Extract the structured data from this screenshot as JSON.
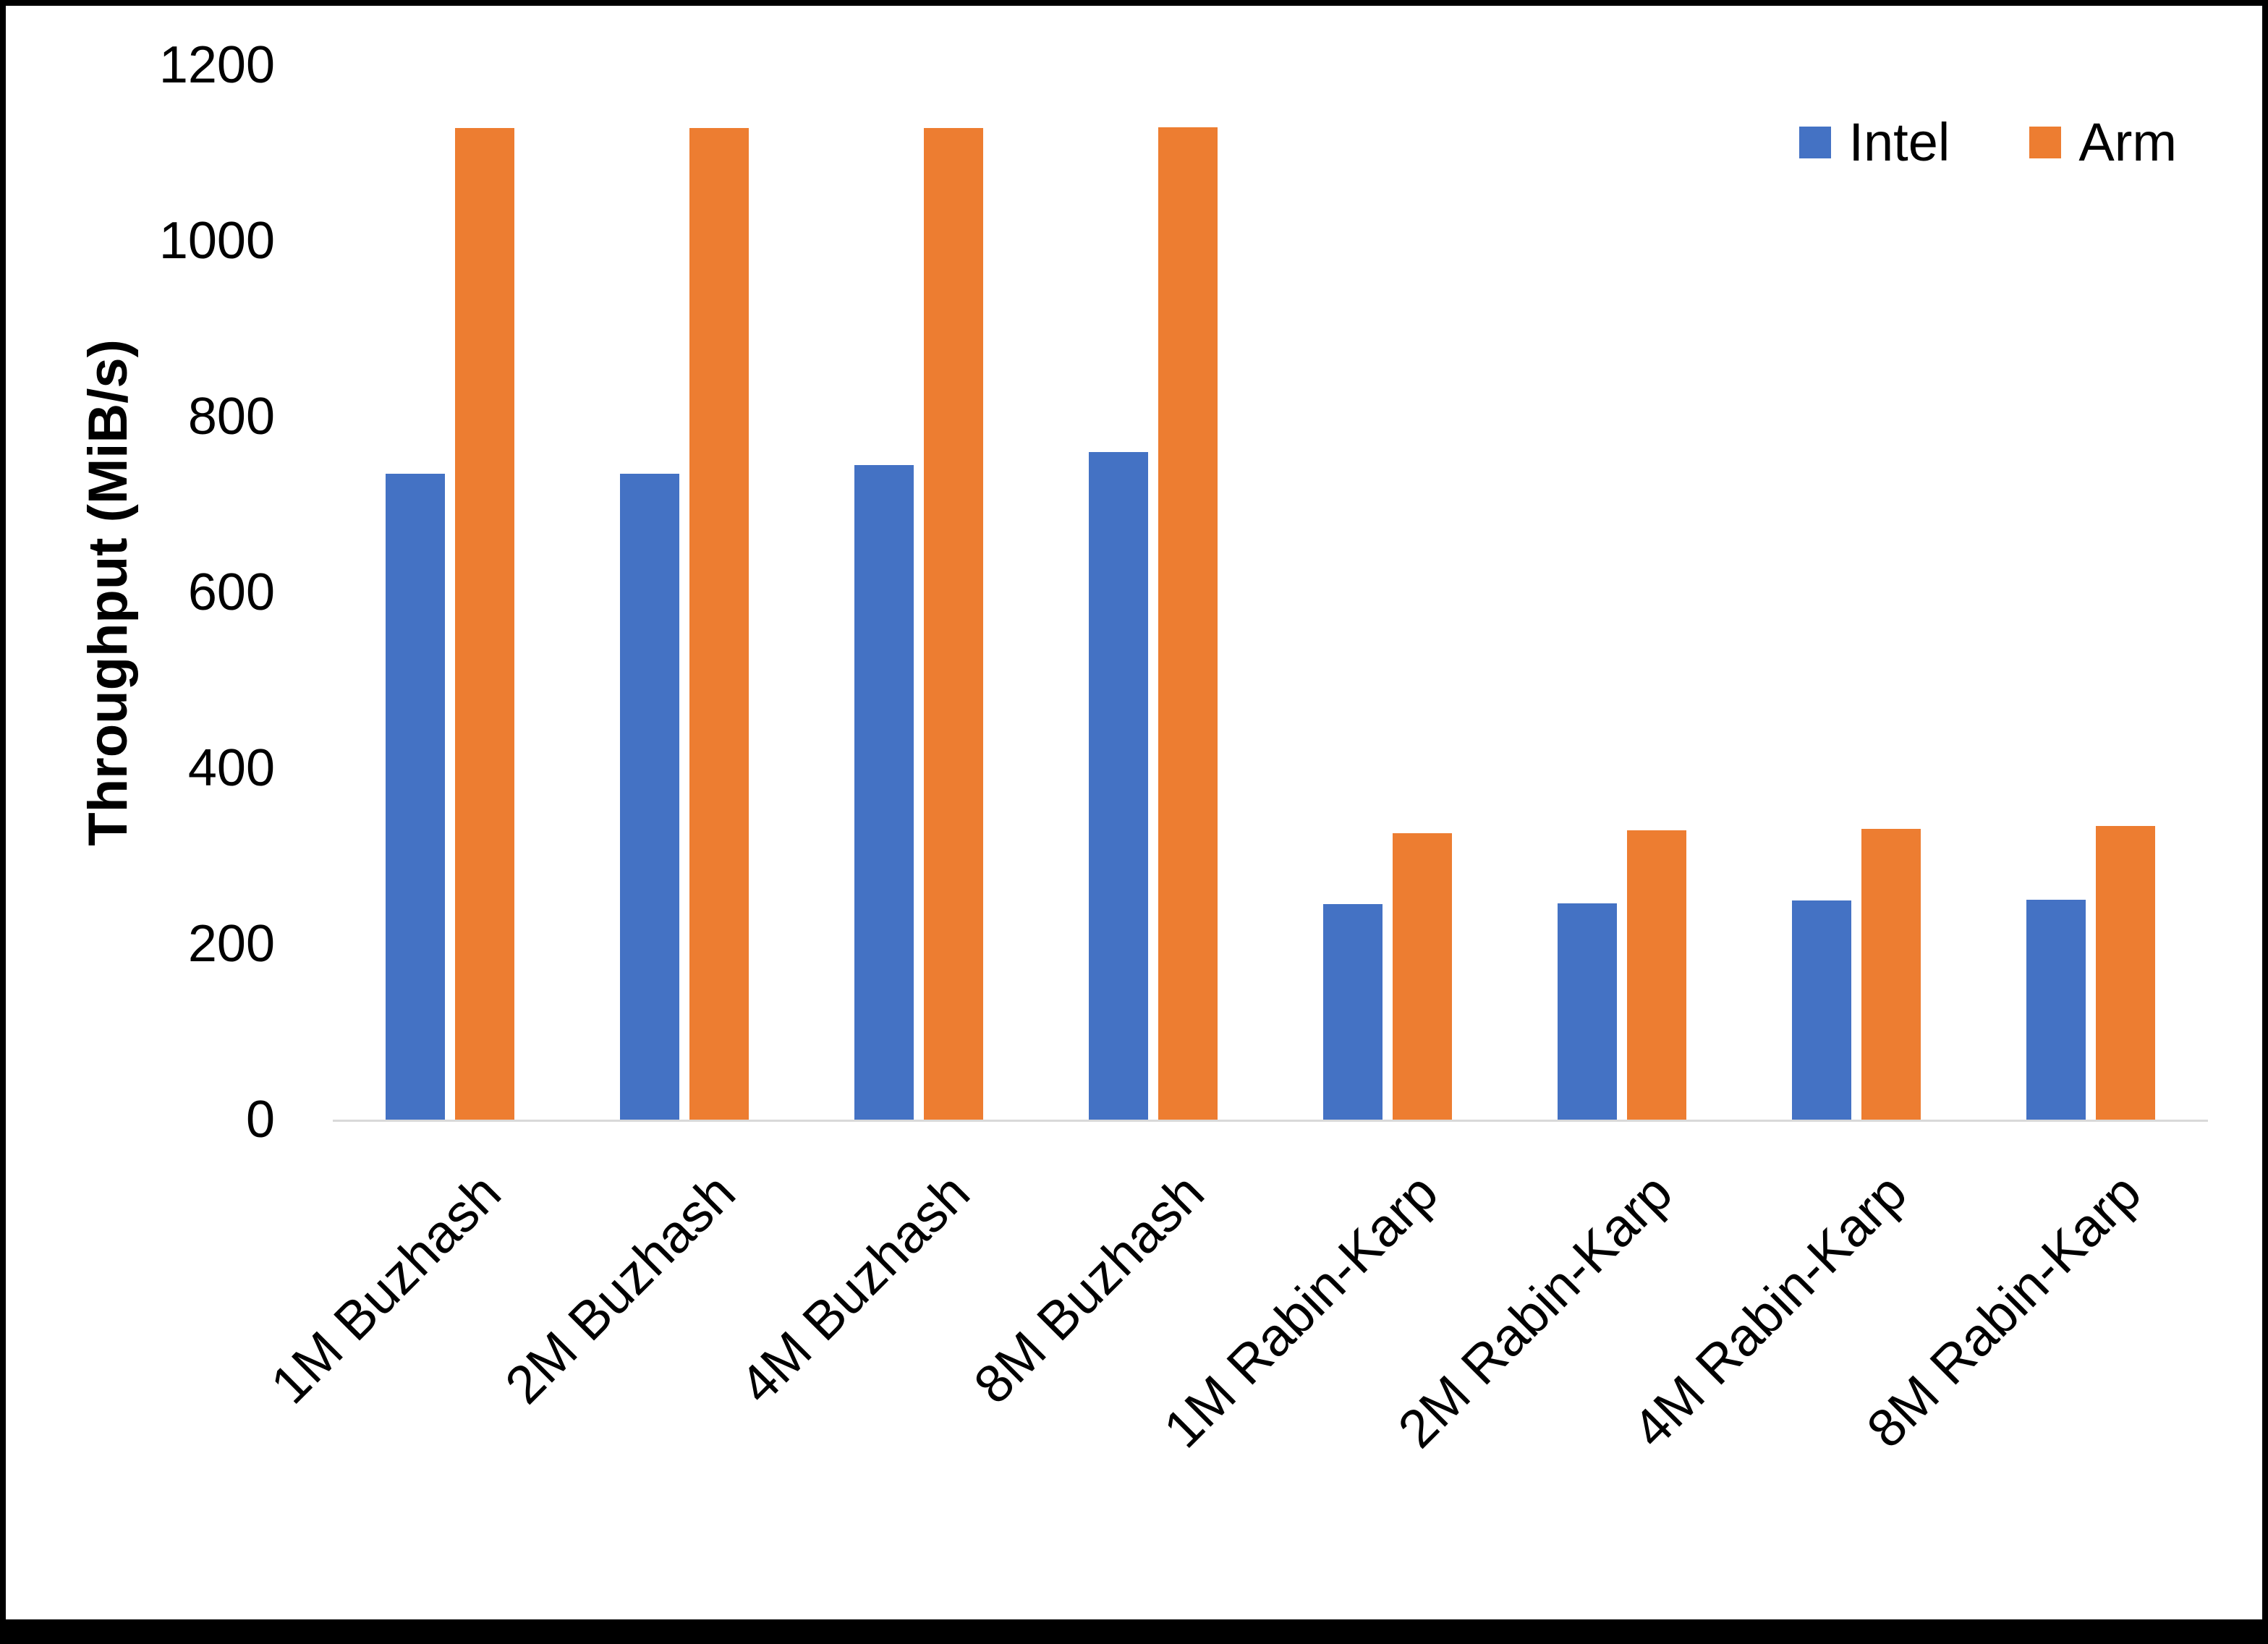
{
  "chart_data": {
    "type": "bar",
    "title": "",
    "xlabel": "",
    "ylabel": "Throughput (MiB/s)",
    "ylim": [
      0,
      1200
    ],
    "yticks": [
      0,
      200,
      400,
      600,
      800,
      1000,
      1200
    ],
    "grid": false,
    "legend_position": "top-right",
    "categories": [
      "1M Buzhash",
      "2M Buzhash",
      "4M Buzhash",
      "8M Buzhash",
      "1M Rabin-Karp",
      "2M Rabin-Karp",
      "4M Rabin-Karp",
      "8M Rabin-Karp"
    ],
    "series": [
      {
        "name": "Intel",
        "color": "#4472C4",
        "values": [
          735,
          735,
          745,
          760,
          245,
          246,
          249,
          250
        ]
      },
      {
        "name": "Arm",
        "color": "#ED7D31",
        "values": [
          1128,
          1128,
          1128,
          1129,
          326,
          329,
          331,
          334
        ]
      }
    ],
    "axis_line_color": "#d9d9d9",
    "text_color": "#000000"
  }
}
